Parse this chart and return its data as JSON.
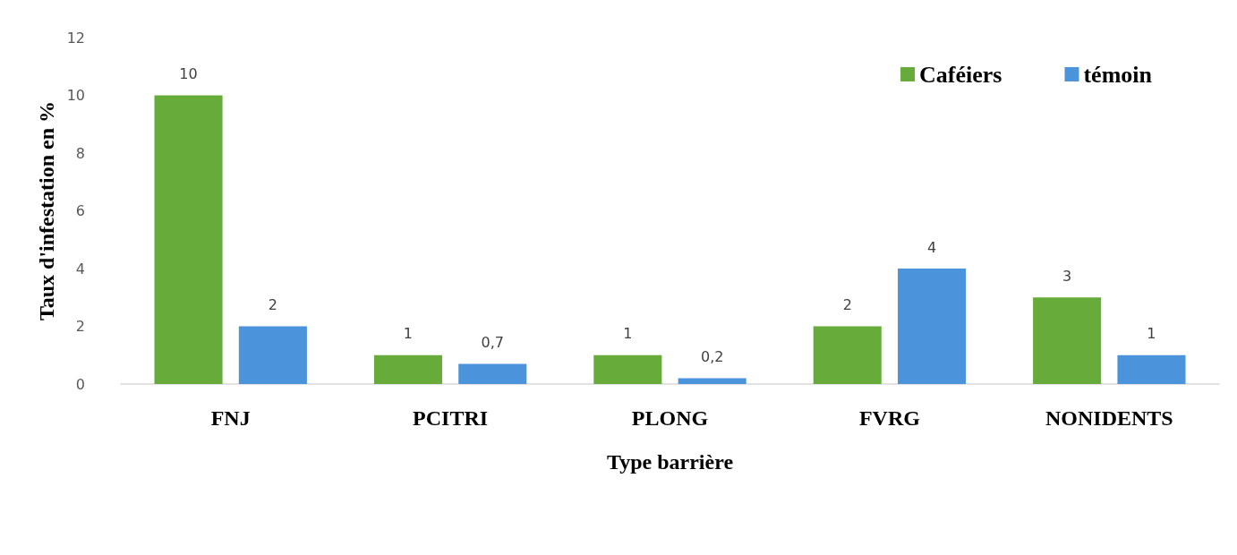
{
  "chart_data": {
    "type": "bar",
    "xlabel": "Type barrière",
    "ylabel": "Taux d'infestation en %",
    "categories": [
      "FNJ",
      "PCITRI",
      "PLONG",
      "FVRG",
      "NONIDENTS"
    ],
    "series": [
      {
        "name": "Caféiers",
        "color": "#67ab3a",
        "values": [
          10,
          1,
          1,
          2,
          3
        ],
        "value_labels": [
          "10",
          "1",
          "1",
          "2",
          "3"
        ]
      },
      {
        "name": "témoin",
        "color": "#4b93da",
        "values": [
          2,
          0.7,
          0.2,
          4,
          1
        ],
        "value_labels": [
          "2",
          "0,7",
          "0,2",
          "4",
          "1"
        ]
      }
    ],
    "ylim": [
      0,
      12
    ],
    "yticks": [
      0,
      2,
      4,
      6,
      8,
      10,
      12
    ],
    "grid": false,
    "legend": "top right"
  }
}
